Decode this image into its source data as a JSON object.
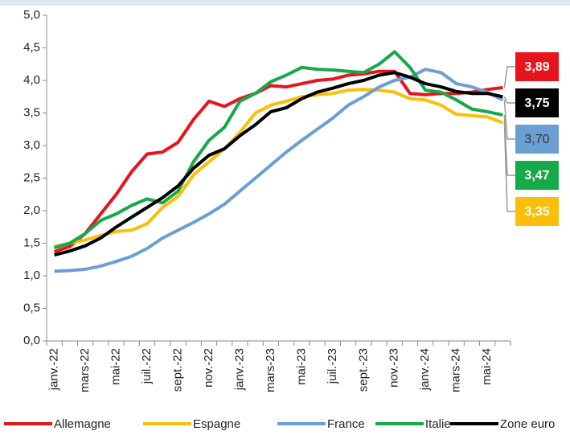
{
  "chart_data": {
    "type": "line",
    "categories": [
      "janv.-22",
      null,
      "mars-22",
      null,
      "mai-22",
      null,
      "juil.-22",
      null,
      "sept.-22",
      null,
      "nov.-22",
      null,
      "janv.-23",
      null,
      "mars-23",
      null,
      "mai-23",
      null,
      "juil.-23",
      null,
      "sept.-23",
      null,
      "nov.-23",
      null,
      "janv.-24",
      null,
      "mars-24",
      null,
      "mai-24",
      null
    ],
    "ylim": [
      0,
      5
    ],
    "yticks": [
      {
        "value": 0,
        "label": "0,0"
      },
      {
        "value": 0.5,
        "label": "0,5"
      },
      {
        "value": 1,
        "label": "1,0"
      },
      {
        "value": 1.5,
        "label": "1,5"
      },
      {
        "value": 2,
        "label": "2,0"
      },
      {
        "value": 2.5,
        "label": "2,5"
      },
      {
        "value": 3,
        "label": "3,0"
      },
      {
        "value": 3.5,
        "label": "3,5"
      },
      {
        "value": 4,
        "label": "4,0"
      },
      {
        "value": 4.5,
        "label": "4,5"
      },
      {
        "value": 5,
        "label": "5,0"
      }
    ],
    "grid": false,
    "series": [
      {
        "name": "Allemagne",
        "color": "#e8141c",
        "values": [
          1.37,
          1.45,
          1.65,
          1.95,
          2.25,
          2.6,
          2.87,
          2.9,
          3.05,
          3.4,
          3.68,
          3.6,
          3.72,
          3.8,
          3.92,
          3.9,
          3.95,
          4.0,
          4.02,
          4.08,
          4.1,
          4.14,
          4.14,
          3.8,
          3.78,
          3.8,
          3.8,
          3.82,
          3.86,
          3.89
        ],
        "value_labels": [
          null,
          null,
          null,
          null,
          null,
          null,
          null,
          null,
          null,
          null,
          null,
          null,
          null,
          null,
          null,
          null,
          null,
          null,
          null,
          null,
          null,
          null,
          null,
          null,
          null,
          null,
          null,
          null,
          null,
          "3,89"
        ]
      },
      {
        "name": "Espagne",
        "color": "#fbbf0a",
        "values": [
          1.45,
          1.5,
          1.55,
          1.62,
          1.68,
          1.7,
          1.8,
          2.05,
          2.22,
          2.55,
          2.75,
          2.95,
          3.2,
          3.5,
          3.62,
          3.68,
          3.75,
          3.78,
          3.8,
          3.85,
          3.86,
          3.85,
          3.82,
          3.72,
          3.7,
          3.62,
          3.48,
          3.46,
          3.44,
          3.35
        ],
        "value_labels": [
          null,
          null,
          null,
          null,
          null,
          null,
          null,
          null,
          null,
          null,
          null,
          null,
          null,
          null,
          null,
          null,
          null,
          null,
          null,
          null,
          null,
          null,
          null,
          null,
          null,
          null,
          null,
          null,
          null,
          "3,35"
        ]
      },
      {
        "name": "France",
        "color": "#6a9fd4",
        "values": [
          1.07,
          1.08,
          1.1,
          1.15,
          1.22,
          1.3,
          1.42,
          1.58,
          1.7,
          1.82,
          1.95,
          2.1,
          2.3,
          2.5,
          2.7,
          2.9,
          3.08,
          3.25,
          3.42,
          3.62,
          3.75,
          3.9,
          4.0,
          4.05,
          4.17,
          4.12,
          3.95,
          3.9,
          3.82,
          3.7
        ],
        "value_labels": [
          null,
          null,
          null,
          null,
          null,
          null,
          null,
          null,
          null,
          null,
          null,
          null,
          null,
          null,
          null,
          null,
          null,
          null,
          null,
          null,
          null,
          null,
          null,
          null,
          null,
          null,
          null,
          null,
          null,
          "3,70"
        ]
      },
      {
        "name": "Italie",
        "color": "#16a94a",
        "values": [
          1.43,
          1.5,
          1.65,
          1.85,
          1.95,
          2.08,
          2.18,
          2.12,
          2.3,
          2.75,
          3.08,
          3.28,
          3.68,
          3.8,
          3.98,
          4.08,
          4.2,
          4.17,
          4.16,
          4.14,
          4.12,
          4.25,
          4.44,
          4.2,
          3.85,
          3.82,
          3.7,
          3.56,
          3.52,
          3.47
        ],
        "value_labels": [
          null,
          null,
          null,
          null,
          null,
          null,
          null,
          null,
          null,
          null,
          null,
          null,
          null,
          null,
          null,
          null,
          null,
          null,
          null,
          null,
          null,
          null,
          null,
          null,
          null,
          null,
          null,
          null,
          null,
          "3,47"
        ]
      },
      {
        "name": "Zone euro",
        "color": "#000000",
        "values": [
          1.32,
          1.38,
          1.46,
          1.58,
          1.75,
          1.9,
          2.05,
          2.2,
          2.38,
          2.65,
          2.85,
          2.95,
          3.15,
          3.32,
          3.52,
          3.58,
          3.72,
          3.82,
          3.88,
          3.95,
          4.0,
          4.08,
          4.12,
          4.05,
          3.95,
          3.9,
          3.83,
          3.8,
          3.8,
          3.75
        ],
        "value_labels": [
          null,
          null,
          null,
          null,
          null,
          null,
          null,
          null,
          null,
          null,
          null,
          null,
          null,
          null,
          null,
          null,
          null,
          null,
          null,
          null,
          null,
          null,
          null,
          null,
          null,
          null,
          null,
          null,
          null,
          "3,75"
        ]
      }
    ]
  }
}
